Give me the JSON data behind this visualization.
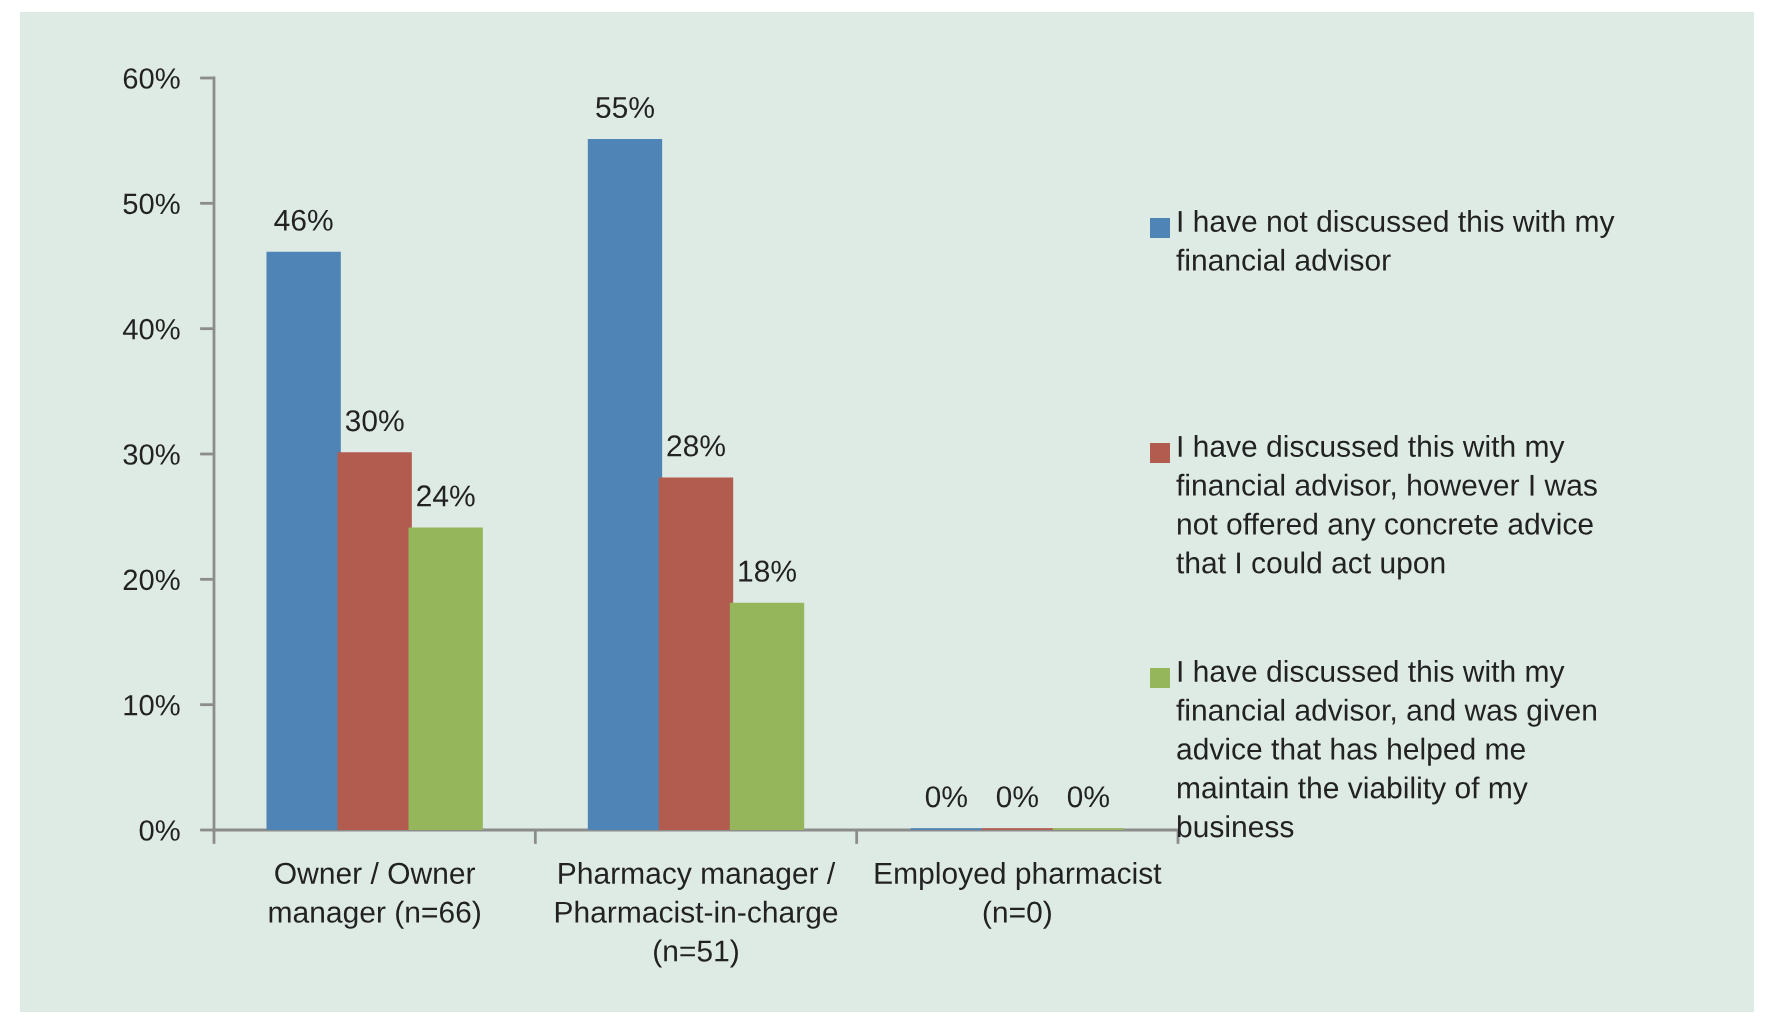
{
  "chart_data": {
    "type": "bar",
    "categories": [
      "Owner / Owner\nmanager (n=66)",
      "Pharmacy manager /\nPharmacist-in-charge\n(n=51)",
      "Employed pharmacist\n(n=0)"
    ],
    "series": [
      {
        "name": "I have not discussed this with my\nfinancial advisor",
        "color": "#4f84b6",
        "values": [
          46,
          55,
          0
        ],
        "value_labels": [
          "46%",
          "55%",
          "0%"
        ]
      },
      {
        "name": "I have discussed this with my\nfinancial advisor, however I was\nnot offered any concrete advice\nthat I could act upon",
        "color": "#b25c50",
        "values": [
          30,
          28,
          0
        ],
        "value_labels": [
          "30%",
          "28%",
          "0%"
        ]
      },
      {
        "name": "I have discussed this with my\nfinancial advisor, and was given\nadvice that has helped me\nmaintain the viability of my\nbusiness",
        "color": "#96b65c",
        "values": [
          24,
          18,
          0
        ],
        "value_labels": [
          "24%",
          "18%",
          "0%"
        ]
      }
    ],
    "ylim": [
      0,
      60
    ],
    "yticks": [
      {
        "value": 0,
        "label": "0%"
      },
      {
        "value": 10,
        "label": "10%"
      },
      {
        "value": 20,
        "label": "20%"
      },
      {
        "value": 30,
        "label": "30%"
      },
      {
        "value": 40,
        "label": "40%"
      },
      {
        "value": 50,
        "label": "50%"
      },
      {
        "value": 60,
        "label": "60%"
      }
    ],
    "legend": "right"
  }
}
